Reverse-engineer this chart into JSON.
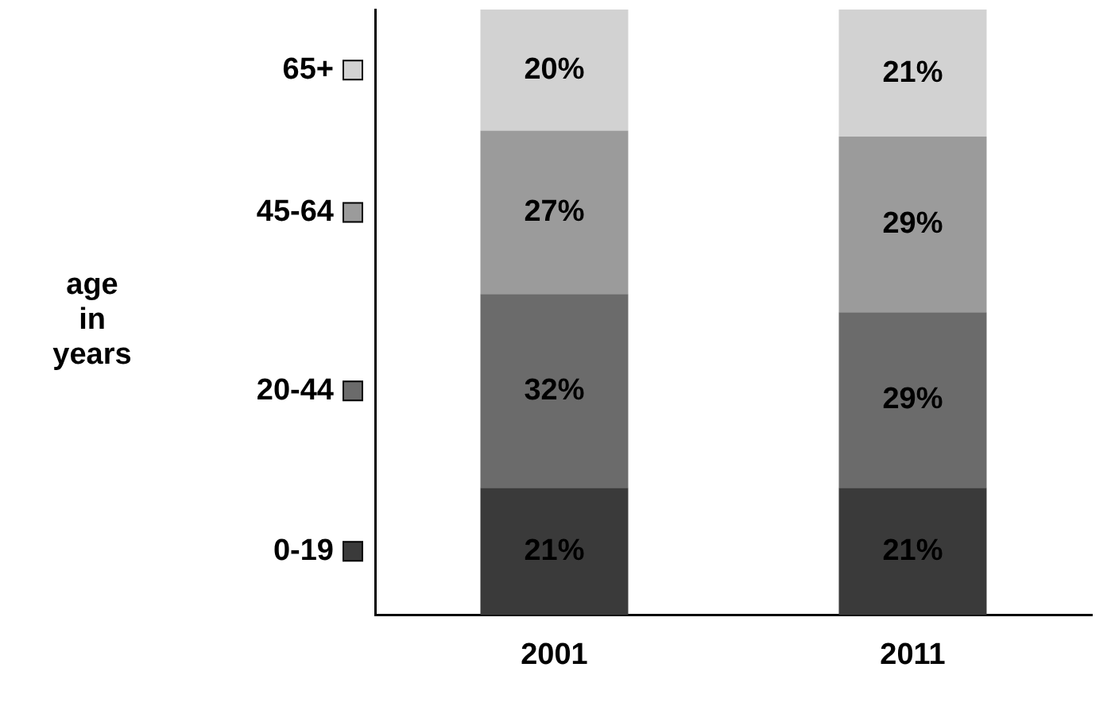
{
  "chart_data": {
    "type": "bar",
    "stacked": true,
    "annotations": [
      "age in years"
    ],
    "categories": [
      "2001",
      "2011"
    ],
    "series": [
      {
        "name": "0-19",
        "color": "#3a3a3a",
        "values": [
          21,
          21
        ],
        "value_labels": [
          "21%",
          "21%"
        ]
      },
      {
        "name": "20-44",
        "color": "#6b6b6b",
        "values": [
          32,
          29
        ],
        "value_labels": [
          "32%",
          "29%"
        ]
      },
      {
        "name": "45-64",
        "color": "#9b9b9b",
        "values": [
          27,
          29
        ],
        "value_labels": [
          "27%",
          "29%"
        ]
      },
      {
        "name": "65+",
        "color": "#d2d2d2",
        "values": [
          20,
          21
        ],
        "value_labels": [
          "20%",
          "21%"
        ]
      }
    ],
    "ylim": [
      0,
      100
    ],
    "tick_labels": "x",
    "grid": false,
    "legend": "left"
  }
}
